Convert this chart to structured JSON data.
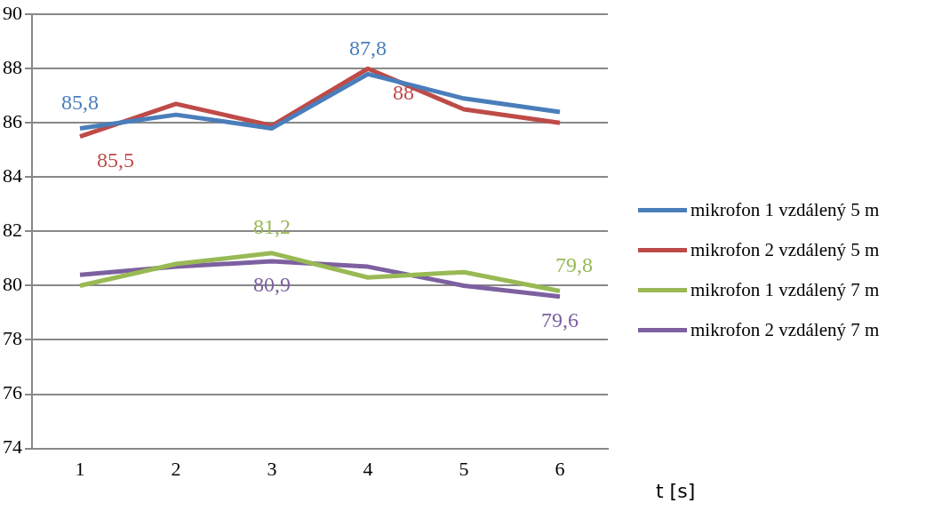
{
  "chart_data": {
    "type": "line",
    "categories": [
      "1",
      "2",
      "3",
      "4",
      "5",
      "6"
    ],
    "xlabel": "t [s]",
    "ylim": [
      74,
      90
    ],
    "yticks": [
      74,
      76,
      78,
      80,
      82,
      84,
      86,
      88,
      90
    ],
    "grid": "y",
    "legend": "right",
    "series": [
      {
        "name": "mikrofon 1 vzdálený 5 m",
        "color": "#4a7ebb",
        "values": [
          85.8,
          86.3,
          85.8,
          87.8,
          86.9,
          86.4
        ],
        "value_labels": [
          "85,8",
          null,
          null,
          "87,8",
          null,
          null
        ]
      },
      {
        "name": "mikrofon 2 vzdálený 5 m",
        "color": "#be4b48",
        "values": [
          85.5,
          86.7,
          85.9,
          88,
          86.5,
          86.0
        ],
        "value_labels": [
          "85,5",
          null,
          null,
          "88",
          null,
          null
        ]
      },
      {
        "name": "mikrofon 1 vzdálený 7 m",
        "color": "#98b954",
        "values": [
          80,
          80.8,
          81.2,
          80.3,
          80.5,
          79.8
        ],
        "value_labels": [
          null,
          null,
          "81,2",
          null,
          null,
          "79,8"
        ]
      },
      {
        "name": "mikrofon 2 vzdálený 7 m",
        "color": "#7d60a0",
        "values": [
          80.4,
          80.7,
          80.9,
          80.7,
          80.0,
          79.6
        ],
        "value_labels": [
          null,
          null,
          "80,9",
          null,
          null,
          "79,6"
        ]
      }
    ]
  }
}
